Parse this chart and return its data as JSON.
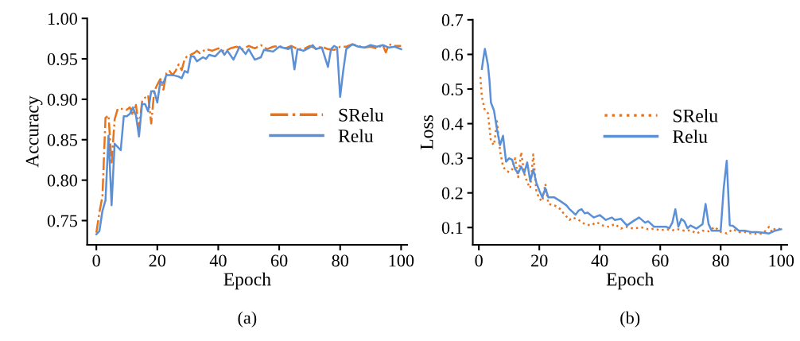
{
  "chart_data": [
    {
      "type": "line",
      "xlabel": "Epoch",
      "ylabel": "Accuracy",
      "xlim": [
        -3,
        102
      ],
      "ylim": [
        0.72,
        1.0
      ],
      "xticks": [
        0,
        20,
        40,
        60,
        80,
        100
      ],
      "yticks": [
        {
          "value": 0.75,
          "label": "0.75"
        },
        {
          "value": 0.8,
          "label": "0.80"
        },
        {
          "value": 0.85,
          "label": "0.85"
        },
        {
          "value": 0.9,
          "label": "0.90"
        },
        {
          "value": 0.95,
          "label": "0.95"
        },
        {
          "value": 1.0,
          "label": "1.00"
        }
      ],
      "legend": "right",
      "grid": false,
      "annotations": [
        "(a)"
      ],
      "series": [
        {
          "name": "SRelu",
          "color": "#e8731a",
          "line_style": "dashdot",
          "x": [
            0,
            1,
            2,
            3,
            4,
            5,
            6,
            7,
            8,
            9,
            10,
            11,
            12,
            13,
            14,
            15,
            16,
            17,
            18,
            19,
            20,
            21,
            22,
            23,
            24,
            25,
            26,
            27,
            28,
            29,
            30,
            31,
            32,
            33,
            34,
            36,
            38,
            40,
            42,
            44,
            46,
            48,
            50,
            52,
            54,
            56,
            58,
            60,
            62,
            64,
            66,
            68,
            70,
            72,
            74,
            76,
            78,
            80,
            82,
            84,
            86,
            88,
            90,
            92,
            94,
            95,
            96,
            98,
            100
          ],
          "values": [
            0.735,
            0.76,
            0.78,
            0.877,
            0.88,
            0.82,
            0.875,
            0.888,
            0.888,
            0.888,
            0.887,
            0.89,
            0.88,
            0.893,
            0.864,
            0.897,
            0.902,
            0.905,
            0.87,
            0.91,
            0.918,
            0.925,
            0.912,
            0.932,
            0.935,
            0.93,
            0.935,
            0.943,
            0.936,
            0.95,
            0.954,
            0.955,
            0.957,
            0.96,
            0.957,
            0.962,
            0.96,
            0.963,
            0.959,
            0.963,
            0.965,
            0.962,
            0.966,
            0.963,
            0.967,
            0.962,
            0.965,
            0.966,
            0.963,
            0.966,
            0.962,
            0.962,
            0.966,
            0.963,
            0.965,
            0.962,
            0.961,
            0.965,
            0.965,
            0.968,
            0.966,
            0.964,
            0.965,
            0.963,
            0.967,
            0.958,
            0.968,
            0.966,
            0.966
          ]
        },
        {
          "name": "Relu",
          "color": "#5b8fd6",
          "line_style": "solid",
          "x": [
            0,
            1,
            2,
            3,
            4,
            5,
            6,
            7,
            8,
            9,
            10,
            11,
            12,
            13,
            14,
            15,
            16,
            17,
            18,
            19,
            20,
            21,
            22,
            23,
            25,
            27,
            28,
            29,
            30,
            31,
            32,
            33,
            35,
            36,
            37,
            39,
            41,
            42,
            43,
            45,
            46,
            47,
            49,
            50,
            52,
            54,
            55,
            58,
            60,
            63,
            64,
            65,
            66,
            68,
            70,
            71,
            72,
            74,
            76,
            77,
            78,
            79,
            80,
            81,
            82,
            84,
            86,
            88,
            90,
            92,
            94,
            96,
            98,
            100
          ],
          "values": [
            0.733,
            0.737,
            0.762,
            0.775,
            0.855,
            0.769,
            0.845,
            0.841,
            0.837,
            0.879,
            0.879,
            0.882,
            0.89,
            0.88,
            0.854,
            0.894,
            0.894,
            0.885,
            0.91,
            0.91,
            0.896,
            0.922,
            0.92,
            0.93,
            0.93,
            0.928,
            0.926,
            0.935,
            0.933,
            0.953,
            0.953,
            0.947,
            0.952,
            0.95,
            0.955,
            0.953,
            0.961,
            0.955,
            0.96,
            0.949,
            0.957,
            0.965,
            0.956,
            0.962,
            0.949,
            0.952,
            0.961,
            0.959,
            0.965,
            0.962,
            0.965,
            0.937,
            0.962,
            0.96,
            0.964,
            0.967,
            0.962,
            0.964,
            0.94,
            0.962,
            0.966,
            0.964,
            0.903,
            0.935,
            0.962,
            0.968,
            0.965,
            0.964,
            0.967,
            0.965,
            0.967,
            0.964,
            0.965,
            0.962
          ]
        }
      ]
    },
    {
      "type": "line",
      "xlabel": "Epoch",
      "ylabel": "Loss",
      "xlim": [
        -2,
        102
      ],
      "ylim": [
        0.05,
        0.7
      ],
      "xticks": [
        0,
        20,
        40,
        60,
        80,
        100
      ],
      "yticks": [
        0.1,
        0.2,
        0.3,
        0.4,
        0.5,
        0.6,
        0.7
      ],
      "legend": "center",
      "grid": false,
      "annotations": [
        "(b)"
      ],
      "series": [
        {
          "name": "SRelu",
          "color": "#e8731a",
          "line_style": "dotted",
          "x": [
            0.5,
            1,
            2,
            3,
            4,
            5,
            6,
            7,
            8,
            9,
            10,
            11,
            12,
            13,
            14,
            15,
            16,
            17,
            18,
            19,
            20,
            21,
            22,
            23,
            25,
            27,
            28,
            30,
            31,
            33,
            35,
            37,
            39,
            41,
            43,
            45,
            47,
            49,
            51,
            54,
            56,
            58,
            60,
            62,
            64,
            66,
            68,
            70,
            72,
            74,
            76,
            78,
            80,
            82,
            84,
            86,
            88,
            90,
            92,
            94,
            96,
            97,
            98,
            100
          ],
          "values": [
            0.535,
            0.477,
            0.438,
            0.43,
            0.349,
            0.338,
            0.407,
            0.322,
            0.276,
            0.264,
            0.26,
            0.268,
            0.3,
            0.245,
            0.318,
            0.257,
            0.23,
            0.214,
            0.311,
            0.207,
            0.183,
            0.176,
            0.226,
            0.168,
            0.164,
            0.153,
            0.141,
            0.122,
            0.129,
            0.122,
            0.11,
            0.106,
            0.115,
            0.106,
            0.102,
            0.11,
            0.097,
            0.102,
            0.097,
            0.1,
            0.095,
            0.097,
            0.092,
            0.095,
            0.092,
            0.095,
            0.091,
            0.092,
            0.083,
            0.091,
            0.089,
            0.102,
            0.087,
            0.083,
            0.095,
            0.087,
            0.087,
            0.083,
            0.082,
            0.083,
            0.102,
            0.087,
            0.098,
            0.095
          ]
        },
        {
          "name": "Relu",
          "color": "#5b8fd6",
          "line_style": "solid",
          "x": [
            1,
            1.5,
            2,
            3,
            3.5,
            4,
            5,
            6,
            7,
            8,
            9,
            10,
            11,
            12,
            13,
            14,
            15,
            16,
            17,
            18,
            19,
            20,
            21,
            22,
            23,
            25,
            27,
            29,
            30,
            32,
            33,
            34,
            35,
            36,
            38,
            40,
            42,
            44,
            45,
            47,
            49,
            51,
            53,
            55,
            56,
            58,
            60,
            62,
            63,
            64,
            65,
            66,
            67,
            68,
            69,
            70,
            72,
            74,
            75,
            76,
            77,
            79,
            80,
            81,
            82,
            83,
            84,
            86,
            88,
            90,
            92,
            94,
            96,
            98,
            100
          ],
          "values": [
            0.558,
            0.589,
            0.616,
            0.57,
            0.527,
            0.461,
            0.438,
            0.384,
            0.338,
            0.365,
            0.29,
            0.3,
            0.296,
            0.268,
            0.257,
            0.276,
            0.257,
            0.288,
            0.234,
            0.268,
            0.23,
            0.207,
            0.187,
            0.213,
            0.187,
            0.187,
            0.176,
            0.164,
            0.153,
            0.137,
            0.149,
            0.153,
            0.141,
            0.143,
            0.129,
            0.136,
            0.122,
            0.129,
            0.122,
            0.125,
            0.106,
            0.118,
            0.129,
            0.114,
            0.118,
            0.102,
            0.102,
            0.102,
            0.098,
            0.114,
            0.153,
            0.102,
            0.125,
            0.118,
            0.098,
            0.106,
            0.097,
            0.11,
            0.168,
            0.11,
            0.091,
            0.091,
            0.091,
            0.214,
            0.293,
            0.106,
            0.105,
            0.091,
            0.091,
            0.087,
            0.087,
            0.085,
            0.083,
            0.091,
            0.095
          ]
        }
      ]
    }
  ]
}
